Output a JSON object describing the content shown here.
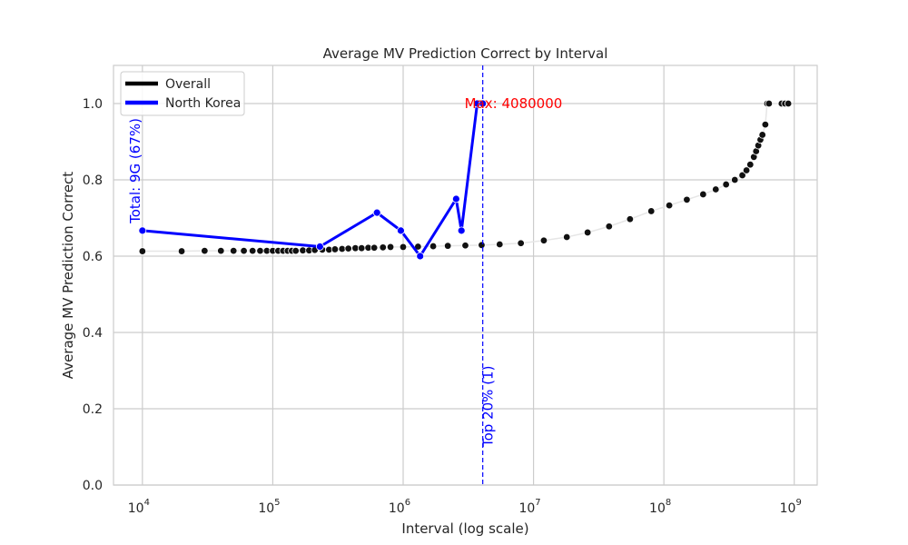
{
  "chart_data": {
    "type": "line",
    "title": "Average MV Prediction Correct by Interval",
    "xlabel": "Interval (log scale)",
    "ylabel": "Average MV Prediction Correct",
    "x_scale": "log",
    "xlim": [
      6000,
      1500000000
    ],
    "ylim": [
      0,
      1.1
    ],
    "x_ticks": [
      {
        "value": 10000,
        "base": "10",
        "exp": "4"
      },
      {
        "value": 100000,
        "base": "10",
        "exp": "5"
      },
      {
        "value": 1000000,
        "base": "10",
        "exp": "6"
      },
      {
        "value": 10000000,
        "base": "10",
        "exp": "7"
      },
      {
        "value": 100000000,
        "base": "10",
        "exp": "8"
      },
      {
        "value": 1000000000,
        "base": "10",
        "exp": "9"
      }
    ],
    "y_ticks": [
      "0.0",
      "0.2",
      "0.4",
      "0.6",
      "0.8",
      "1.0"
    ],
    "grid": true,
    "legend_position": "top-left",
    "legend": [
      {
        "label": "Overall",
        "color": "#000000"
      },
      {
        "label": "North Korea",
        "color": "#0000ff"
      }
    ],
    "series": [
      {
        "name": "Overall",
        "color": "#000000",
        "x": [
          10000,
          20000,
          30000,
          40000,
          50000,
          60000,
          70000,
          80000,
          90000,
          100000,
          110000,
          120000,
          130000,
          140000,
          150000,
          170000,
          190000,
          210000,
          240000,
          270000,
          300000,
          340000,
          380000,
          430000,
          480000,
          540000,
          600000,
          700000,
          800000,
          1000000,
          1300000,
          1700000,
          2200000,
          3000000,
          4000000,
          5500000,
          8000000,
          12000000,
          18000000,
          26000000,
          38000000,
          55000000,
          80000000,
          110000000,
          150000000,
          200000000,
          250000000,
          300000000,
          350000000,
          400000000,
          430000000,
          460000000,
          490000000,
          510000000,
          530000000,
          550000000,
          570000000,
          600000000,
          620000000,
          640000000,
          800000000,
          850000000,
          900000000
        ],
        "y": [
          0.613,
          0.613,
          0.614,
          0.614,
          0.614,
          0.614,
          0.614,
          0.614,
          0.614,
          0.614,
          0.614,
          0.614,
          0.614,
          0.614,
          0.614,
          0.615,
          0.615,
          0.616,
          0.617,
          0.617,
          0.618,
          0.619,
          0.62,
          0.621,
          0.621,
          0.622,
          0.622,
          0.623,
          0.624,
          0.624,
          0.625,
          0.626,
          0.627,
          0.628,
          0.629,
          0.631,
          0.634,
          0.641,
          0.65,
          0.662,
          0.678,
          0.697,
          0.718,
          0.733,
          0.748,
          0.762,
          0.775,
          0.788,
          0.8,
          0.812,
          0.825,
          0.84,
          0.86,
          0.875,
          0.89,
          0.905,
          0.918,
          0.945,
          1.0,
          1.0,
          1.0,
          1.0,
          1.0
        ]
      },
      {
        "name": "North Korea",
        "color": "#0000ff",
        "x": [
          10000,
          230000,
          630000,
          960000,
          1350000,
          2550000,
          2800000,
          3700000,
          4080000
        ],
        "y": [
          0.667,
          0.625,
          0.714,
          0.667,
          0.6,
          0.75,
          0.667,
          1.0,
          1.0
        ]
      }
    ],
    "annotations": [
      {
        "text": "Max: 4080000",
        "color": "#ff0000",
        "x": 4080000,
        "y": 1.0
      },
      {
        "text": "Total: 9G (67%)",
        "color": "#0000ff",
        "x": 10000,
        "y": 0.667,
        "rotation": -90
      },
      {
        "text": "Top 20% (1)",
        "color": "#0000ff",
        "x": 4080000,
        "y": 0.0,
        "rotation": -90
      }
    ],
    "vline": {
      "x": 4080000,
      "color": "#0000ff",
      "style": "dashed"
    }
  }
}
